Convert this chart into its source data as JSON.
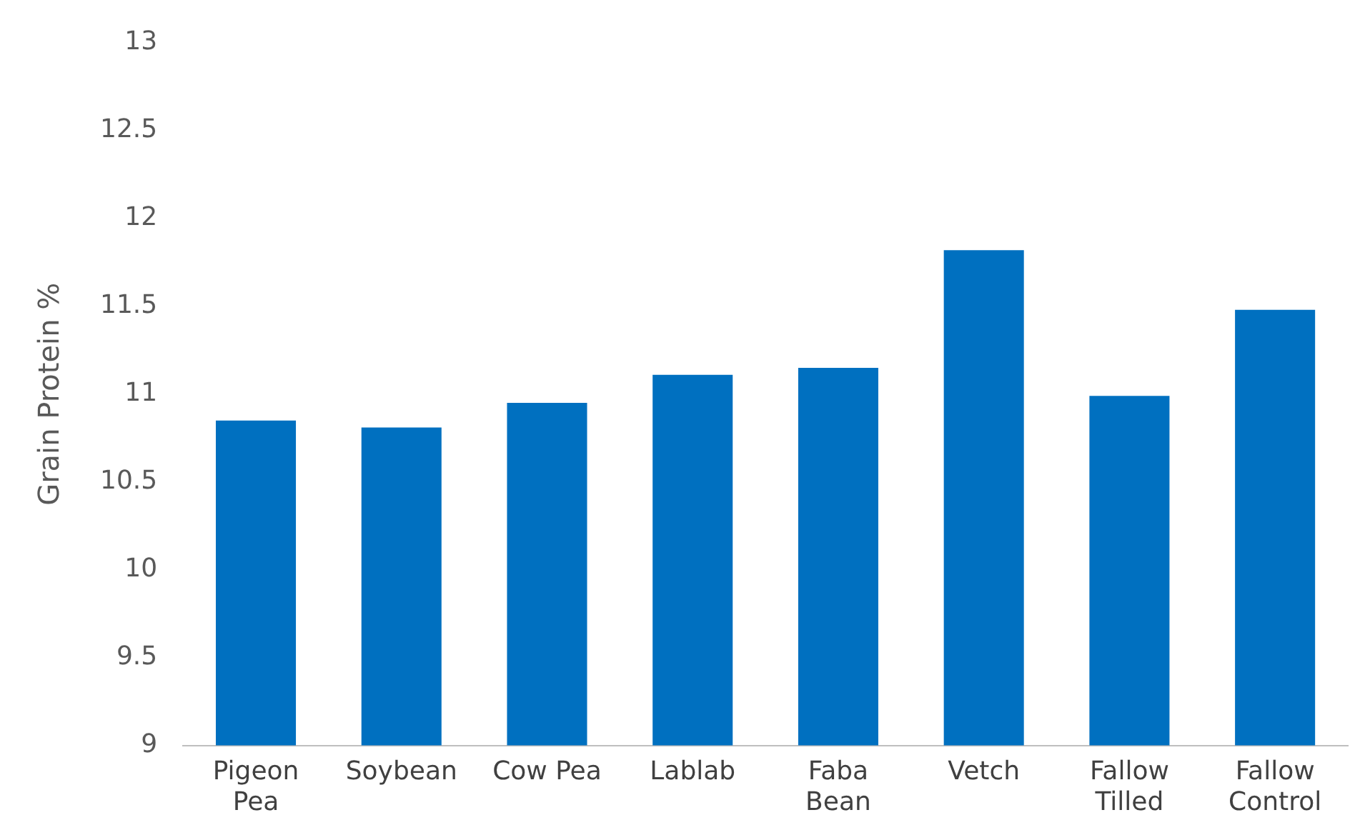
{
  "chart_data": {
    "type": "bar",
    "ylabel": "Grain Protein %",
    "categories": [
      "Pigeon Pea",
      "Soybean",
      "Cow Pea",
      "Lablab",
      "Faba Bean",
      "Vetch",
      "Fallow Tilled",
      "Fallow Control"
    ],
    "values": [
      10.85,
      10.81,
      10.95,
      11.11,
      11.15,
      11.82,
      10.99,
      11.48
    ],
    "color": "#0070c0",
    "ylim": [
      9,
      13
    ],
    "yticks": [
      9,
      9.5,
      10,
      10.5,
      11,
      11.5,
      12,
      12.5,
      13
    ],
    "grid": false,
    "legend": false
  }
}
